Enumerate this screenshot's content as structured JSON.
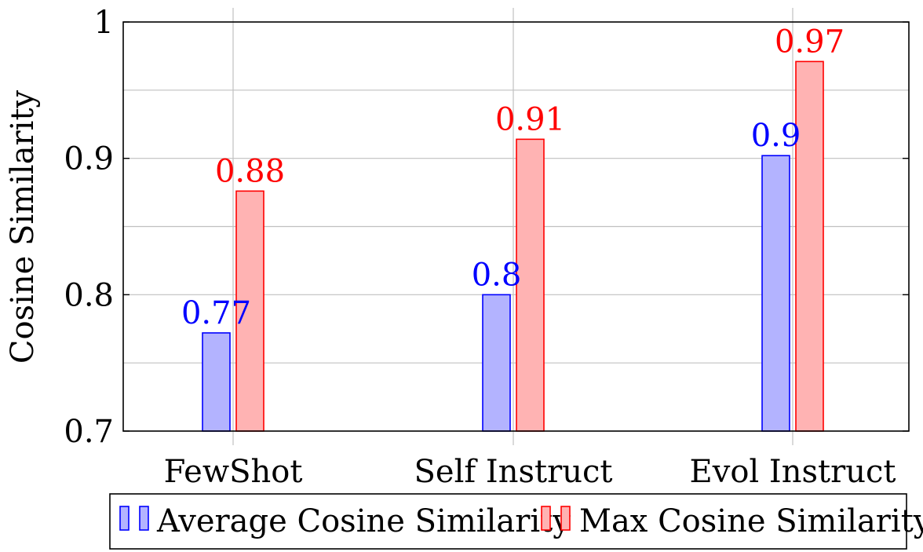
{
  "chart_data": {
    "type": "bar",
    "title": "",
    "xlabel": "",
    "ylabel": "Cosine Similarity",
    "categories": [
      "FewShot",
      "Self Instruct",
      "Evol Instruct"
    ],
    "series": [
      {
        "name": "Average Cosine Similarity",
        "values": [
          0.772,
          0.8,
          0.902
        ],
        "labels": [
          "0.77",
          "0.8",
          "0.9"
        ],
        "fill": "#b3b3ff",
        "stroke": "#0000ff"
      },
      {
        "name": "Max Cosine Similarity",
        "values": [
          0.876,
          0.914,
          0.971
        ],
        "labels": [
          "0.88",
          "0.91",
          "0.97"
        ],
        "fill": "#ffb3b3",
        "stroke": "#ff0000"
      }
    ],
    "ylim": [
      0.7,
      1.0
    ],
    "yticks": [
      0.7,
      0.8,
      0.9,
      1.0
    ],
    "ytick_labels": [
      "0.7",
      "0.8",
      "0.9",
      "1"
    ],
    "grid": true,
    "legend_position": "bottom-center"
  }
}
